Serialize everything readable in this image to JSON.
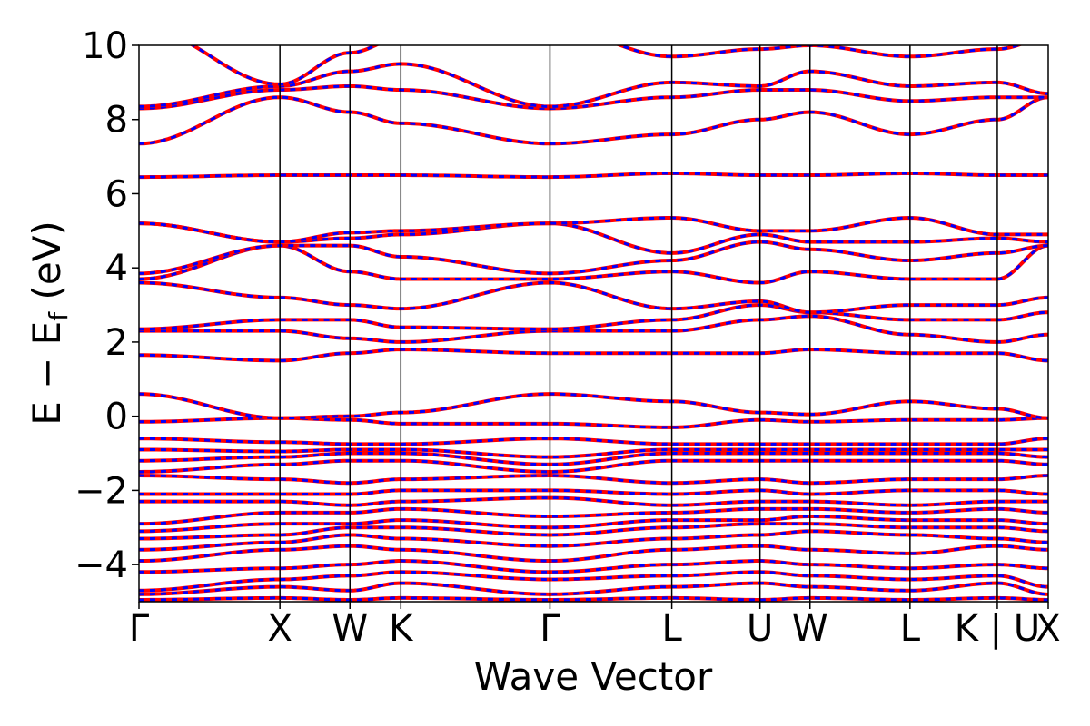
{
  "chart_data": {
    "type": "line",
    "title": "",
    "xlabel": "Wave Vector",
    "ylabel_parts": [
      "E",
      "−",
      "E",
      "f",
      "(eV)"
    ],
    "ylim": [
      -5,
      10
    ],
    "yticks": [
      -4,
      -2,
      0,
      2,
      4,
      6,
      8,
      10
    ],
    "ytick_labels": [
      "−4",
      "−2",
      "0",
      "2",
      "4",
      "6",
      "8",
      "10"
    ],
    "xlim": [
      0,
      1
    ],
    "kpoint_labels": [
      "Γ",
      "X",
      "W",
      "K",
      "Γ",
      "L",
      "U",
      "W",
      "L",
      "K | U",
      "X"
    ],
    "kpoint_positions": [
      0,
      0.155,
      0.232,
      0.288,
      0.452,
      0.586,
      0.683,
      0.738,
      0.848,
      0.944,
      1.0
    ],
    "grid": false,
    "legend": "none",
    "series_style": {
      "line1_color": "#ff0000",
      "line2_color": "#0000ff",
      "style": "overlaid solid red + dashed blue"
    },
    "bands": [
      [
        -4.95,
        -4.9,
        -4.95,
        -4.9,
        -4.95,
        -4.9,
        -4.95,
        -4.9,
        -4.95,
        -4.9,
        -4.95
      ],
      [
        -4.8,
        -4.6,
        -4.7,
        -4.5,
        -4.8,
        -4.6,
        -4.5,
        -4.6,
        -4.7,
        -4.5,
        -4.8
      ],
      [
        -4.7,
        -4.4,
        -4.3,
        -4.2,
        -4.4,
        -4.3,
        -4.2,
        -4.3,
        -4.4,
        -4.3,
        -4.6
      ],
      [
        -4.2,
        -4.1,
        -4.0,
        -3.9,
        -4.2,
        -4.0,
        -3.9,
        -4.0,
        -4.1,
        -4.0,
        -4.1
      ],
      [
        -3.9,
        -3.6,
        -3.5,
        -3.6,
        -3.9,
        -3.6,
        -3.5,
        -3.6,
        -3.7,
        -3.5,
        -3.6
      ],
      [
        -3.6,
        -3.4,
        -3.2,
        -3.3,
        -3.5,
        -3.3,
        -3.2,
        -3.1,
        -3.2,
        -3.3,
        -3.4
      ],
      [
        -3.3,
        -3.2,
        -3.0,
        -3.0,
        -3.2,
        -3.0,
        -2.9,
        -2.9,
        -3.0,
        -3.0,
        -3.1
      ],
      [
        -3.1,
        -2.9,
        -2.9,
        -2.8,
        -3.0,
        -2.8,
        -2.8,
        -2.7,
        -2.8,
        -2.8,
        -2.9
      ],
      [
        -2.9,
        -2.6,
        -2.6,
        -2.5,
        -2.7,
        -2.6,
        -2.5,
        -2.5,
        -2.6,
        -2.5,
        -2.6
      ],
      [
        -2.3,
        -2.3,
        -2.4,
        -2.3,
        -2.2,
        -2.4,
        -2.3,
        -2.3,
        -2.4,
        -2.3,
        -2.3
      ],
      [
        -2.1,
        -2.1,
        -2.1,
        -2.0,
        -2.0,
        -2.1,
        -2.0,
        -2.1,
        -2.0,
        -2.0,
        -2.1
      ],
      [
        -1.6,
        -1.7,
        -1.8,
        -1.7,
        -1.6,
        -1.8,
        -1.7,
        -1.8,
        -1.7,
        -1.7,
        -1.6
      ],
      [
        -1.5,
        -1.3,
        -1.2,
        -1.2,
        -1.5,
        -1.2,
        -1.2,
        -1.2,
        -1.2,
        -1.2,
        -1.3
      ],
      [
        -1.2,
        -1.1,
        -1.0,
        -1.0,
        -1.3,
        -1.0,
        -1.0,
        -1.0,
        -1.0,
        -1.0,
        -1.1
      ],
      [
        -0.9,
        -0.95,
        -0.9,
        -0.9,
        -1.1,
        -0.9,
        -0.9,
        -0.9,
        -0.9,
        -0.9,
        -0.9
      ],
      [
        -0.6,
        -0.7,
        -0.75,
        -0.75,
        -0.6,
        -0.75,
        -0.75,
        -0.75,
        -0.75,
        -0.75,
        -0.6
      ],
      [
        -0.15,
        -0.05,
        -0.1,
        -0.2,
        -0.2,
        -0.3,
        -0.1,
        -0.15,
        -0.1,
        -0.1,
        -0.05
      ],
      [
        0.6,
        -0.05,
        0.0,
        0.1,
        0.6,
        0.4,
        0.1,
        0.05,
        0.4,
        0.2,
        -0.05
      ],
      [
        1.65,
        1.5,
        1.7,
        1.8,
        1.7,
        1.7,
        1.7,
        1.8,
        1.7,
        1.7,
        1.5
      ],
      [
        2.3,
        2.3,
        2.1,
        2.0,
        2.3,
        2.3,
        2.6,
        2.7,
        2.2,
        2.0,
        2.2
      ],
      [
        2.35,
        2.6,
        2.6,
        2.4,
        2.35,
        2.6,
        3.0,
        2.8,
        2.6,
        2.6,
        2.8
      ],
      [
        3.6,
        3.2,
        3.0,
        2.9,
        3.6,
        2.9,
        3.1,
        2.8,
        3.0,
        3.0,
        3.2
      ],
      [
        3.7,
        4.6,
        3.9,
        3.7,
        3.7,
        3.9,
        3.6,
        3.9,
        3.7,
        3.7,
        4.6
      ],
      [
        3.85,
        4.6,
        4.6,
        4.3,
        3.85,
        4.2,
        4.7,
        4.5,
        4.2,
        4.4,
        4.6
      ],
      [
        5.2,
        4.7,
        4.8,
        4.9,
        5.2,
        4.4,
        4.9,
        4.7,
        4.7,
        4.8,
        4.7
      ],
      [
        5.2,
        4.7,
        4.95,
        5.0,
        5.2,
        5.35,
        5.0,
        5.0,
        5.35,
        4.9,
        4.9
      ],
      [
        6.45,
        6.5,
        6.5,
        6.5,
        6.45,
        6.55,
        6.5,
        6.5,
        6.55,
        6.5,
        6.5
      ],
      [
        7.35,
        8.6,
        8.2,
        7.9,
        7.35,
        7.6,
        8.0,
        8.2,
        7.6,
        8.0,
        8.6
      ],
      [
        8.3,
        8.8,
        8.9,
        8.8,
        8.3,
        8.6,
        8.8,
        8.8,
        8.5,
        8.6,
        8.6
      ],
      [
        8.35,
        8.9,
        9.3,
        9.5,
        8.35,
        9.0,
        8.9,
        9.3,
        8.9,
        9.0,
        8.7
      ],
      [
        10.5,
        8.95,
        9.8,
        10.2,
        10.5,
        9.7,
        9.9,
        10.0,
        9.7,
        9.9,
        10.2
      ]
    ]
  }
}
